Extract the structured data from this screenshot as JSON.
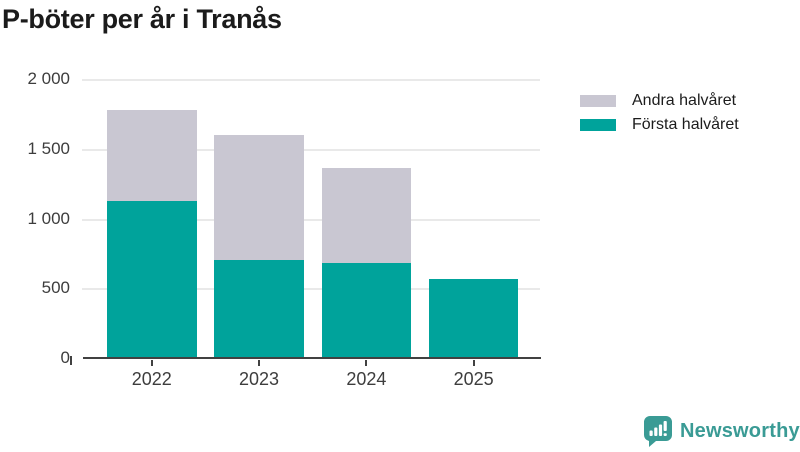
{
  "title": "P-böter per år i Tranås",
  "chart_data": {
    "type": "bar",
    "stacked": true,
    "title": "P-böter per år i Tranås",
    "categories": [
      "2022",
      "2023",
      "2024",
      "2025"
    ],
    "series": [
      {
        "name": "Första halvåret",
        "color": "#00a39b",
        "values": [
          1135,
          710,
          690,
          575
        ]
      },
      {
        "name": "Andra halvåret",
        "color": "#c9c7d2",
        "values": [
          650,
          900,
          680,
          0
        ]
      }
    ],
    "xlabel": "",
    "ylabel": "",
    "ylim": [
      0,
      2000
    ],
    "yticks": [
      {
        "value": 0,
        "label": "0"
      },
      {
        "value": 500,
        "label": "500"
      },
      {
        "value": 1000,
        "label": "1 000"
      },
      {
        "value": 1500,
        "label": "1 500"
      },
      {
        "value": 2000,
        "label": "2 000"
      }
    ],
    "grid": "horizontal",
    "legend_position": "right"
  },
  "legend": {
    "items": [
      {
        "label": "Andra halvåret",
        "color": "#c9c7d2"
      },
      {
        "label": "Första halvåret",
        "color": "#00a39b"
      }
    ]
  },
  "branding": {
    "name": "Newsworthy",
    "color": "#3a9b95"
  }
}
